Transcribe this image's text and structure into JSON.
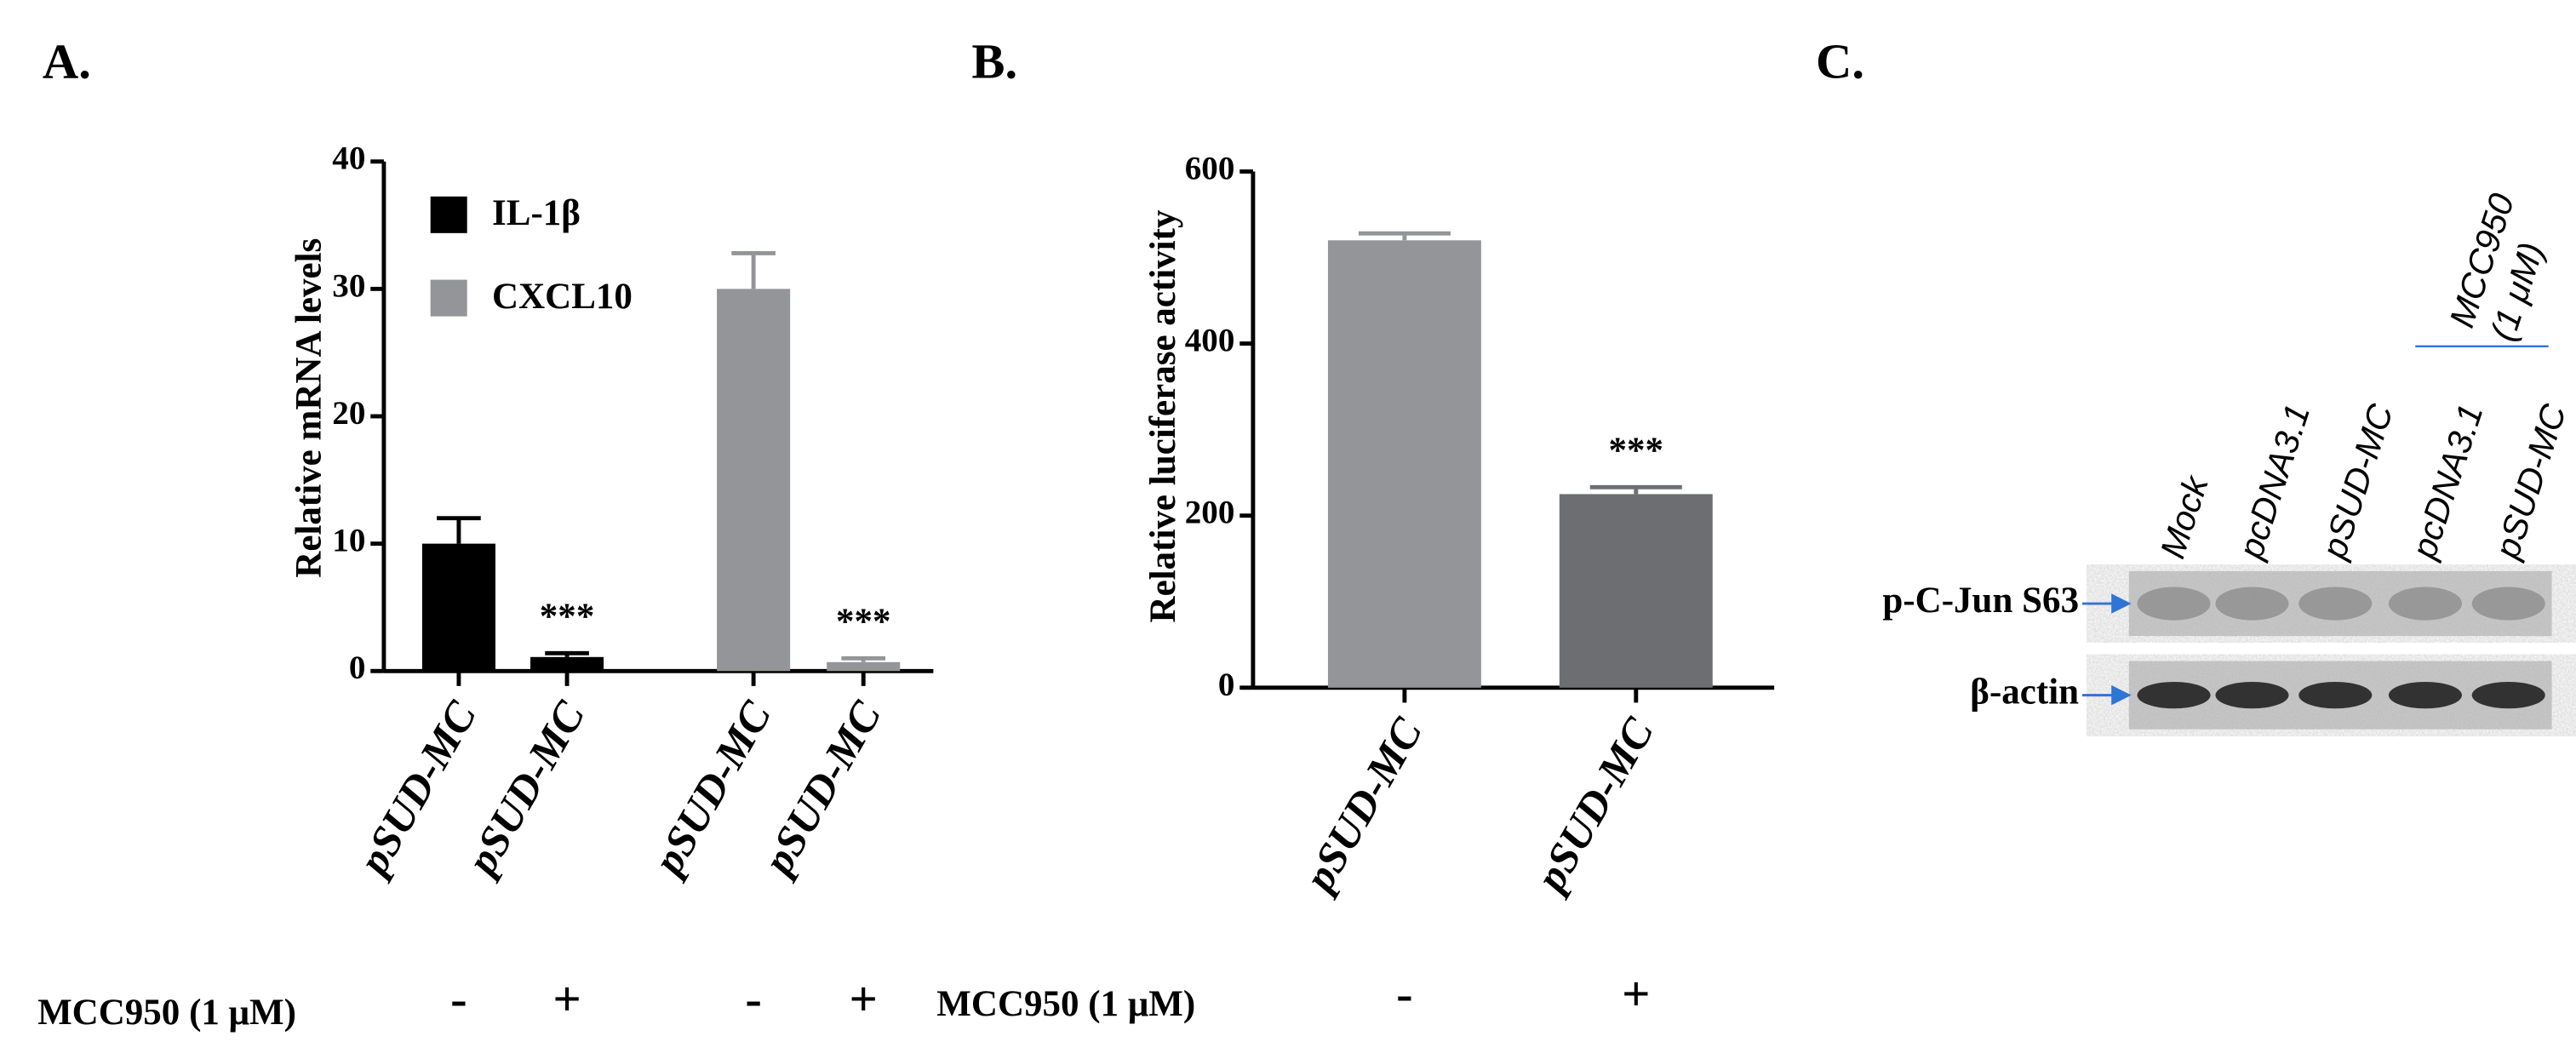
{
  "chart_data": [
    {
      "panel": "A.",
      "type": "bar",
      "ylabel": "Relative mRNA levels",
      "categories": [
        "pSUD-MC",
        "pSUD-MC",
        "pSUD-MC",
        "pSUD-MC"
      ],
      "series": [
        {
          "name": "IL-1β",
          "color": "#000000",
          "values": [
            10,
            1.1,
            null,
            null
          ],
          "errors": [
            2,
            0.3,
            null,
            null
          ]
        },
        {
          "name": "CXCL10",
          "color": "#939598",
          "values": [
            null,
            null,
            30,
            0.7
          ],
          "errors": [
            null,
            null,
            2.8,
            0.3
          ]
        }
      ],
      "ylim": [
        0,
        40
      ],
      "yticks": [
        0,
        10,
        20,
        30,
        40
      ],
      "annotations": [
        {
          "text": "***",
          "category": 1
        },
        {
          "text": "***",
          "category": 3
        }
      ],
      "treatment_label": "MCC950 (1 μM)",
      "treatment": [
        "-",
        "+",
        "-",
        "+"
      ]
    },
    {
      "panel": "B.",
      "type": "bar",
      "ylabel": "Relative luciferase activity",
      "categories": [
        "pSUD-MC",
        "pSUD-MC"
      ],
      "series": [
        {
          "colors": [
            "#939598",
            "#6d6e71"
          ],
          "values": [
            520,
            225
          ],
          "errors": [
            8,
            8
          ]
        }
      ],
      "ylim": [
        0,
        600
      ],
      "yticks": [
        0,
        200,
        400,
        600
      ],
      "annotations": [
        {
          "text": "***",
          "category": 1
        }
      ],
      "treatment_label": "MCC950 (1 μM)",
      "treatment": [
        "-",
        "+"
      ]
    }
  ],
  "blot": {
    "panel": "C.",
    "lanes": [
      "Mock",
      "pcDNA3.1",
      "pSUD-MC",
      "pcDNA3.1",
      "pSUD-MC"
    ],
    "group_label": "MCC950 (1 μM)",
    "bands": [
      "p-C-Jun S63",
      "β-actin"
    ]
  }
}
